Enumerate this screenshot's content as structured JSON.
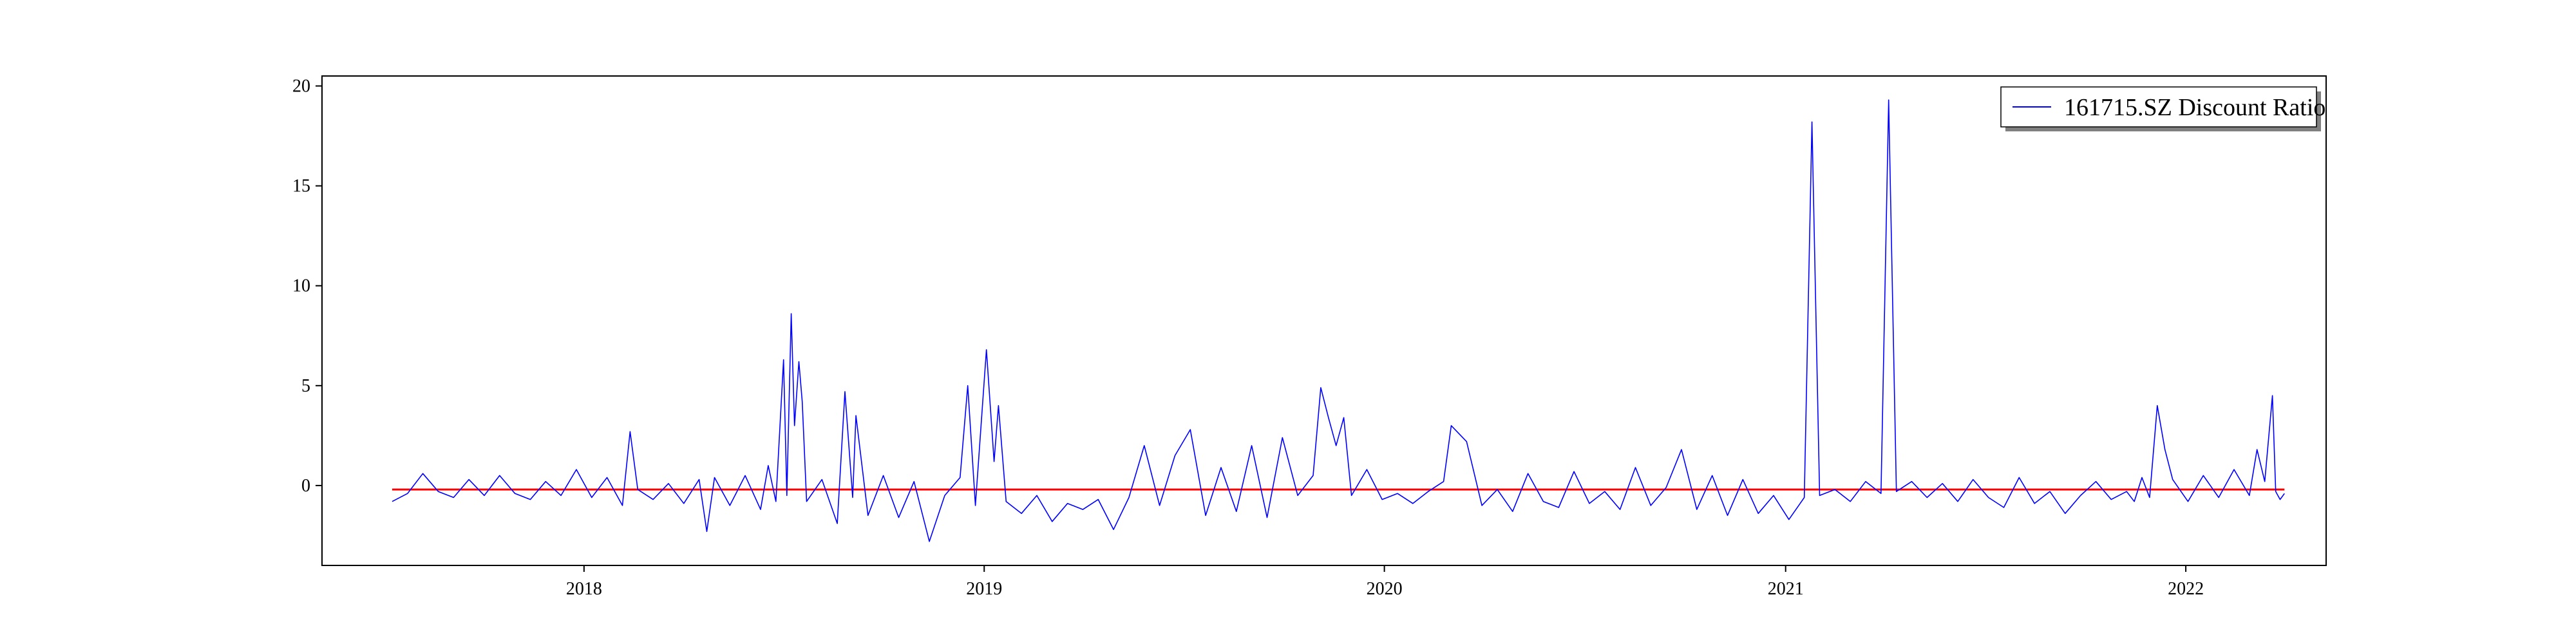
{
  "chart_data": {
    "type": "line",
    "title": "",
    "xlabel": "",
    "ylabel": "",
    "x_range": [
      "2017-05-07",
      "2022-05-09"
    ],
    "ylim": [
      -4,
      20.5
    ],
    "x_ticks": [
      {
        "date": "2018-01-01",
        "label": "2018"
      },
      {
        "date": "2019-01-01",
        "label": "2019"
      },
      {
        "date": "2020-01-01",
        "label": "2020"
      },
      {
        "date": "2021-01-01",
        "label": "2021"
      },
      {
        "date": "2022-01-01",
        "label": "2022"
      }
    ],
    "y_ticks": [
      0,
      5,
      10,
      15,
      20
    ],
    "grid": false,
    "legend": {
      "placement": "upper right",
      "entries": [
        "161715.SZ Discount Ratio"
      ]
    },
    "reference_line": {
      "value": -0.2,
      "color": "#ff0000",
      "x_start": "2017-07-10",
      "x_end": "2022-04-01"
    },
    "series": [
      {
        "name": "161715.SZ Discount Ratio",
        "color": "#0000ff",
        "points": [
          [
            "2017-07-10",
            -0.8
          ],
          [
            "2017-07-24",
            -0.4
          ],
          [
            "2017-08-07",
            0.6
          ],
          [
            "2017-08-21",
            -0.3
          ],
          [
            "2017-09-04",
            -0.6
          ],
          [
            "2017-09-18",
            0.3
          ],
          [
            "2017-10-02",
            -0.5
          ],
          [
            "2017-10-16",
            0.5
          ],
          [
            "2017-10-30",
            -0.4
          ],
          [
            "2017-11-13",
            -0.7
          ],
          [
            "2017-11-27",
            0.2
          ],
          [
            "2017-12-11",
            -0.5
          ],
          [
            "2017-12-25",
            0.8
          ],
          [
            "2018-01-08",
            -0.6
          ],
          [
            "2018-01-22",
            0.4
          ],
          [
            "2018-02-05",
            -1.0
          ],
          [
            "2018-02-12",
            2.7
          ],
          [
            "2018-02-19",
            -0.2
          ],
          [
            "2018-03-05",
            -0.7
          ],
          [
            "2018-03-19",
            0.1
          ],
          [
            "2018-04-02",
            -0.9
          ],
          [
            "2018-04-16",
            0.3
          ],
          [
            "2018-04-23",
            -2.3
          ],
          [
            "2018-04-30",
            0.4
          ],
          [
            "2018-05-14",
            -1.0
          ],
          [
            "2018-05-28",
            0.5
          ],
          [
            "2018-06-11",
            -1.2
          ],
          [
            "2018-06-18",
            1.0
          ],
          [
            "2018-06-25",
            -0.8
          ],
          [
            "2018-07-02",
            6.3
          ],
          [
            "2018-07-05",
            -0.5
          ],
          [
            "2018-07-09",
            8.6
          ],
          [
            "2018-07-12",
            3.0
          ],
          [
            "2018-07-16",
            6.2
          ],
          [
            "2018-07-19",
            4.2
          ],
          [
            "2018-07-23",
            -0.8
          ],
          [
            "2018-08-06",
            0.3
          ],
          [
            "2018-08-20",
            -1.9
          ],
          [
            "2018-08-27",
            4.7
          ],
          [
            "2018-09-03",
            -0.6
          ],
          [
            "2018-09-06",
            3.5
          ],
          [
            "2018-09-17",
            -1.5
          ],
          [
            "2018-10-01",
            0.5
          ],
          [
            "2018-10-15",
            -1.6
          ],
          [
            "2018-10-29",
            0.2
          ],
          [
            "2018-11-12",
            -2.8
          ],
          [
            "2018-11-26",
            -0.5
          ],
          [
            "2018-12-10",
            0.4
          ],
          [
            "2018-12-17",
            5.0
          ],
          [
            "2018-12-24",
            -1.0
          ],
          [
            "2019-01-03",
            6.8
          ],
          [
            "2019-01-10",
            1.2
          ],
          [
            "2019-01-14",
            4.0
          ],
          [
            "2019-01-21",
            -0.8
          ],
          [
            "2019-02-04",
            -1.4
          ],
          [
            "2019-02-18",
            -0.5
          ],
          [
            "2019-03-04",
            -1.8
          ],
          [
            "2019-03-18",
            -0.9
          ],
          [
            "2019-04-01",
            -1.2
          ],
          [
            "2019-04-15",
            -0.7
          ],
          [
            "2019-04-29",
            -2.2
          ],
          [
            "2019-05-13",
            -0.6
          ],
          [
            "2019-05-27",
            2.0
          ],
          [
            "2019-06-10",
            -1.0
          ],
          [
            "2019-06-24",
            1.5
          ],
          [
            "2019-07-08",
            2.8
          ],
          [
            "2019-07-22",
            -1.5
          ],
          [
            "2019-08-05",
            0.9
          ],
          [
            "2019-08-19",
            -1.3
          ],
          [
            "2019-09-02",
            2.0
          ],
          [
            "2019-09-16",
            -1.6
          ],
          [
            "2019-09-30",
            2.4
          ],
          [
            "2019-10-14",
            -0.5
          ],
          [
            "2019-10-28",
            0.5
          ],
          [
            "2019-11-04",
            4.9
          ],
          [
            "2019-11-11",
            3.4
          ],
          [
            "2019-11-18",
            2.0
          ],
          [
            "2019-11-25",
            3.4
          ],
          [
            "2019-12-02",
            -0.5
          ],
          [
            "2019-12-16",
            0.8
          ],
          [
            "2019-12-30",
            -0.7
          ],
          [
            "2020-01-13",
            -0.4
          ],
          [
            "2020-01-27",
            -0.9
          ],
          [
            "2020-02-10",
            -0.3
          ],
          [
            "2020-02-24",
            0.2
          ],
          [
            "2020-03-02",
            3.0
          ],
          [
            "2020-03-16",
            2.2
          ],
          [
            "2020-03-30",
            -1.0
          ],
          [
            "2020-04-13",
            -0.2
          ],
          [
            "2020-04-27",
            -1.3
          ],
          [
            "2020-05-11",
            0.6
          ],
          [
            "2020-05-25",
            -0.8
          ],
          [
            "2020-06-08",
            -1.1
          ],
          [
            "2020-06-22",
            0.7
          ],
          [
            "2020-07-06",
            -0.9
          ],
          [
            "2020-07-20",
            -0.3
          ],
          [
            "2020-08-03",
            -1.2
          ],
          [
            "2020-08-17",
            0.9
          ],
          [
            "2020-08-31",
            -1.0
          ],
          [
            "2020-09-14",
            -0.1
          ],
          [
            "2020-09-28",
            1.8
          ],
          [
            "2020-10-12",
            -1.2
          ],
          [
            "2020-10-26",
            0.5
          ],
          [
            "2020-11-09",
            -1.5
          ],
          [
            "2020-11-23",
            0.3
          ],
          [
            "2020-12-07",
            -1.4
          ],
          [
            "2020-12-21",
            -0.5
          ],
          [
            "2021-01-04",
            -1.7
          ],
          [
            "2021-01-18",
            -0.6
          ],
          [
            "2021-01-25",
            18.2
          ],
          [
            "2021-02-01",
            -0.5
          ],
          [
            "2021-02-15",
            -0.2
          ],
          [
            "2021-03-01",
            -0.8
          ],
          [
            "2021-03-15",
            0.2
          ],
          [
            "2021-03-29",
            -0.4
          ],
          [
            "2021-04-05",
            19.3
          ],
          [
            "2021-04-12",
            -0.3
          ],
          [
            "2021-04-26",
            0.2
          ],
          [
            "2021-05-10",
            -0.6
          ],
          [
            "2021-05-24",
            0.1
          ],
          [
            "2021-06-07",
            -0.8
          ],
          [
            "2021-06-21",
            0.3
          ],
          [
            "2021-07-05",
            -0.6
          ],
          [
            "2021-07-19",
            -1.1
          ],
          [
            "2021-08-02",
            0.4
          ],
          [
            "2021-08-16",
            -0.9
          ],
          [
            "2021-08-30",
            -0.3
          ],
          [
            "2021-09-13",
            -1.4
          ],
          [
            "2021-09-27",
            -0.5
          ],
          [
            "2021-10-11",
            0.2
          ],
          [
            "2021-10-25",
            -0.7
          ],
          [
            "2021-11-08",
            -0.3
          ],
          [
            "2021-11-15",
            -0.8
          ],
          [
            "2021-11-22",
            0.4
          ],
          [
            "2021-11-29",
            -0.6
          ],
          [
            "2021-12-06",
            4.0
          ],
          [
            "2021-12-13",
            1.8
          ],
          [
            "2021-12-20",
            0.3
          ],
          [
            "2022-01-03",
            -0.8
          ],
          [
            "2022-01-17",
            0.5
          ],
          [
            "2022-01-31",
            -0.6
          ],
          [
            "2022-02-14",
            0.8
          ],
          [
            "2022-02-28",
            -0.5
          ],
          [
            "2022-03-07",
            1.8
          ],
          [
            "2022-03-14",
            0.2
          ],
          [
            "2022-03-21",
            4.5
          ],
          [
            "2022-03-24",
            -0.3
          ],
          [
            "2022-03-28",
            -0.7
          ],
          [
            "2022-04-01",
            -0.4
          ]
        ]
      }
    ]
  }
}
